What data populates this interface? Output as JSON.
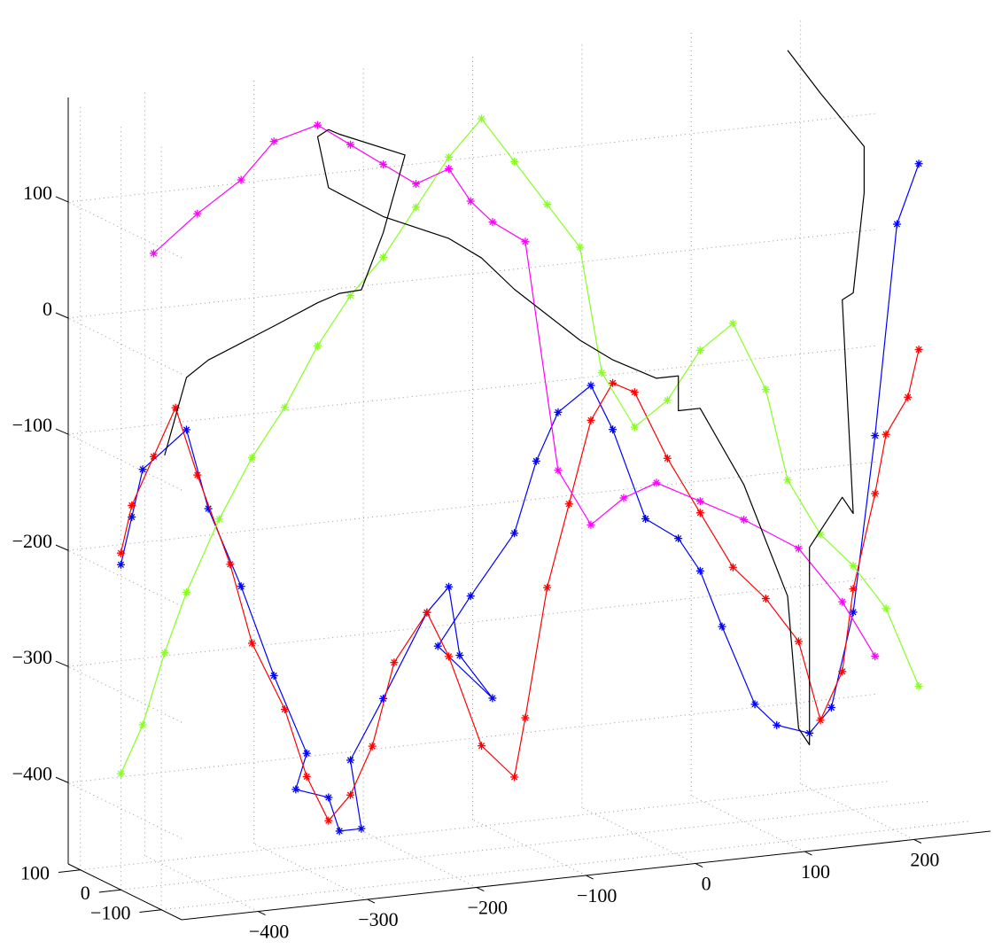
{
  "chart_data": {
    "type": "line",
    "projection": "3d",
    "grid": true,
    "title": "",
    "xlabel": "",
    "ylabel": "",
    "zlabel": "",
    "axes": {
      "x": {
        "ticks": [
          -400,
          -300,
          -200,
          -100,
          0,
          100,
          200
        ],
        "tick_labels": [
          "−400",
          "−300",
          "−200",
          "−100",
          "0",
          "100",
          "200"
        ],
        "range": [
          -470,
          270
        ]
      },
      "y": {
        "ticks": [
          -100,
          0,
          100
        ],
        "tick_labels": [
          "−100",
          "0",
          "100"
        ],
        "range": [
          -150,
          130
        ]
      },
      "z": {
        "ticks": [
          -400,
          -300,
          -200,
          -100,
          0,
          100
        ],
        "tick_labels": [
          "−400",
          "−300",
          "−200",
          "−100",
          "0",
          "100"
        ],
        "range": [
          -470,
          190
        ]
      }
    },
    "series": [
      {
        "color": "#000000",
        "marker": "none",
        "line_width": 4,
        "x": [
          -430,
          -410,
          -390,
          -330,
          -290,
          -270,
          -250,
          -230,
          -210,
          -270,
          -280,
          -290,
          -280,
          -230,
          -170,
          -140,
          -110,
          -50,
          -20,
          20,
          40,
          40,
          60,
          100,
          140,
          150,
          160,
          160,
          160,
          190,
          200,
          190,
          200,
          210,
          210,
          170,
          140
        ],
        "y": [
          0,
          0,
          0,
          0,
          0,
          0,
          0,
          0,
          0,
          0,
          0,
          0,
          0,
          0,
          0,
          0,
          0,
          0,
          0,
          0,
          0,
          0,
          0,
          0,
          0,
          0,
          0,
          0,
          0,
          0,
          0,
          0,
          0,
          0,
          0,
          0,
          0
        ],
        "z": [
          -100,
          -35,
          -22,
          1,
          17,
          23,
          24,
          71,
          136,
          160,
          165,
          160,
          115,
          85,
          60,
          40,
          10,
          -40,
          -60,
          -80,
          -80,
          -110,
          -110,
          -180,
          -280,
          -395,
          -410,
          -380,
          -240,
          -200,
          -215,
          -30,
          -25,
          60,
          100,
          150,
          190
        ]
      },
      {
        "color": "#0000ff",
        "marker": "asterisk",
        "line_width": 1.2,
        "x": [
          -470,
          -460,
          -450,
          -410,
          -390,
          -360,
          -330,
          -300,
          -310,
          -280,
          -270,
          -250,
          -260,
          -230,
          -190,
          -170,
          -160,
          -130,
          -180,
          -150,
          -110,
          -90,
          -70,
          -40,
          -20,
          10,
          40,
          60,
          80,
          110,
          130,
          160,
          180,
          200,
          220,
          240,
          260
        ],
        "y": [
          0,
          0,
          0,
          0,
          0,
          0,
          0,
          0,
          0,
          0,
          0,
          0,
          0,
          0,
          0,
          0,
          0,
          0,
          0,
          0,
          0,
          0,
          0,
          0,
          0,
          0,
          0,
          0,
          0,
          0,
          0,
          0,
          0,
          0,
          0,
          0,
          0
        ],
        "z": [
          -190,
          -150,
          -110,
          -80,
          -150,
          -220,
          -300,
          -370,
          -400,
          -410,
          -440,
          -440,
          -380,
          -330,
          -260,
          -240,
          -300,
          -340,
          -290,
          -250,
          -200,
          -140,
          -100,
          -80,
          -120,
          -200,
          -220,
          -250,
          -300,
          -370,
          -390,
          -400,
          -380,
          -300,
          -150,
          30,
          80
        ]
      },
      {
        "color": "#ff0000",
        "marker": "asterisk",
        "line_width": 1.2,
        "x": [
          -470,
          -460,
          -440,
          -420,
          -400,
          -370,
          -350,
          -320,
          -300,
          -280,
          -260,
          -240,
          -220,
          -190,
          -170,
          -140,
          -110,
          -100,
          -80,
          -60,
          -40,
          -20,
          0,
          30,
          60,
          90,
          120,
          150,
          170,
          190,
          200,
          220,
          230,
          250,
          260
        ],
        "y": [
          0,
          0,
          0,
          0,
          0,
          0,
          0,
          0,
          0,
          0,
          0,
          0,
          0,
          0,
          0,
          0,
          0,
          0,
          0,
          0,
          0,
          0,
          0,
          0,
          0,
          0,
          0,
          0,
          0,
          0,
          0,
          0,
          0,
          0,
          0
        ],
        "z": [
          -180,
          -140,
          -100,
          -60,
          -120,
          -200,
          -270,
          -330,
          -390,
          -430,
          -410,
          -370,
          -300,
          -260,
          -300,
          -380,
          -410,
          -360,
          -250,
          -180,
          -110,
          -80,
          -90,
          -150,
          -200,
          -250,
          -280,
          -320,
          -390,
          -350,
          -280,
          -200,
          -150,
          -120,
          -80
        ]
      },
      {
        "color": "#88ff22",
        "marker": "asterisk",
        "line_width": 1.2,
        "x": [
          -470,
          -450,
          -430,
          -410,
          -380,
          -350,
          -320,
          -290,
          -260,
          -230,
          -200,
          -170,
          -140,
          -110,
          -80,
          -50,
          -30,
          0,
          30,
          60,
          90,
          120,
          140,
          170,
          200,
          230,
          260
        ],
        "y": [
          0,
          0,
          0,
          0,
          0,
          0,
          0,
          0,
          0,
          0,
          0,
          0,
          0,
          0,
          0,
          0,
          0,
          0,
          0,
          0,
          0,
          0,
          0,
          0,
          0,
          0,
          0
        ],
        "z": [
          -370,
          -330,
          -270,
          -220,
          -160,
          -110,
          -70,
          -20,
          20,
          50,
          90,
          130,
          160,
          120,
          80,
          40,
          -70,
          -120,
          -100,
          -60,
          -40,
          -100,
          -180,
          -230,
          -260,
          -300,
          -370
        ]
      },
      {
        "color": "#ff00ff",
        "marker": "asterisk",
        "line_width": 1.2,
        "x": [
          -440,
          -400,
          -360,
          -330,
          -290,
          -260,
          -230,
          -200,
          -170,
          -150,
          -130,
          -100,
          -70,
          -40,
          -10,
          20,
          60,
          100,
          150,
          190,
          220
        ],
        "y": [
          0,
          0,
          0,
          0,
          0,
          0,
          0,
          0,
          0,
          0,
          0,
          0,
          0,
          0,
          0,
          0,
          0,
          0,
          0,
          0,
          0
        ],
        "z": [
          75,
          105,
          130,
          160,
          170,
          150,
          130,
          110,
          120,
          90,
          70,
          50,
          -150,
          -200,
          -180,
          -170,
          -190,
          -210,
          -240,
          -290,
          -340
        ]
      }
    ]
  }
}
